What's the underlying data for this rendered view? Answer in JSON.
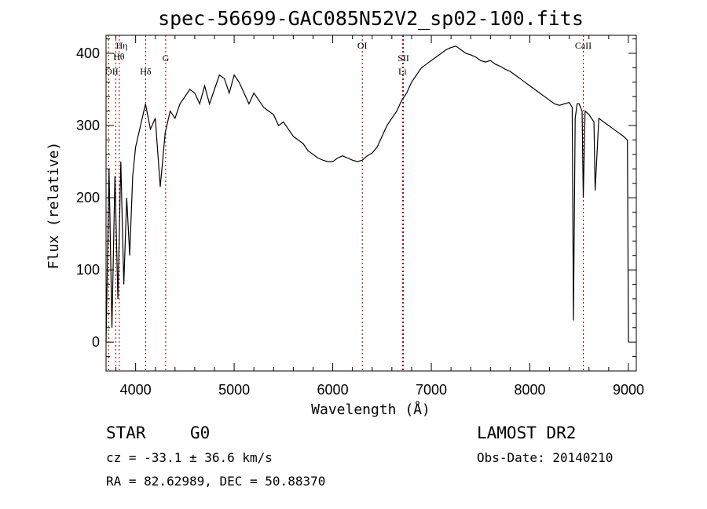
{
  "chart_data": {
    "type": "line",
    "title": "spec-56699-GAC085N52V2_sp02-100.fits",
    "xlabel": "Wavelength (Å)",
    "ylabel": "Flux (relative)",
    "xlim": [
      3700,
      9080
    ],
    "ylim": [
      -40,
      425
    ],
    "xticks": [
      4000,
      5000,
      6000,
      7000,
      8000,
      9000
    ],
    "yticks": [
      0,
      100,
      200,
      300,
      400
    ],
    "grid": false,
    "line_color": "#000000",
    "marker_color": "#8b0000",
    "series": [
      {
        "x": [
          3700,
          3730,
          3760,
          3790,
          3820,
          3850,
          3880,
          3910,
          3940,
          3970,
          4000,
          4050,
          4100,
          4150,
          4200,
          4250,
          4300,
          4350,
          4400,
          4450,
          4500,
          4550,
          4600,
          4650,
          4700,
          4750,
          4800,
          4850,
          4900,
          4950,
          5000,
          5050,
          5100,
          5150,
          5200,
          5250,
          5300,
          5350,
          5400,
          5450,
          5500,
          5550,
          5600,
          5650,
          5700,
          5750,
          5800,
          5850,
          5900,
          5950,
          6000,
          6050,
          6100,
          6150,
          6200,
          6250,
          6300,
          6350,
          6400,
          6450,
          6500,
          6550,
          6600,
          6650,
          6700,
          6750,
          6800,
          6850,
          6900,
          6950,
          7000,
          7050,
          7100,
          7150,
          7200,
          7250,
          7300,
          7350,
          7400,
          7450,
          7500,
          7550,
          7600,
          7650,
          7700,
          7750,
          7800,
          7850,
          7900,
          7950,
          8000,
          8050,
          8100,
          8150,
          8200,
          8250,
          8300,
          8350,
          8400,
          8430,
          8442,
          8460,
          8480,
          8500,
          8530,
          8542,
          8560,
          8600,
          8650,
          8662,
          8700,
          8750,
          8800,
          8850,
          8900,
          8950,
          8990,
          9000
        ],
        "y": [
          0,
          240,
          20,
          230,
          60,
          250,
          80,
          200,
          120,
          230,
          270,
          300,
          330,
          295,
          310,
          215,
          290,
          320,
          310,
          330,
          340,
          350,
          345,
          330,
          355,
          330,
          350,
          370,
          365,
          345,
          370,
          360,
          345,
          330,
          345,
          335,
          325,
          320,
          315,
          300,
          305,
          295,
          285,
          280,
          275,
          265,
          260,
          255,
          252,
          250,
          250,
          255,
          258,
          255,
          252,
          250,
          252,
          258,
          262,
          270,
          285,
          300,
          310,
          320,
          335,
          345,
          360,
          370,
          380,
          385,
          390,
          395,
          400,
          405,
          408,
          410,
          405,
          400,
          398,
          395,
          390,
          388,
          390,
          385,
          382,
          378,
          375,
          370,
          365,
          360,
          355,
          350,
          345,
          340,
          335,
          330,
          328,
          330,
          332,
          325,
          30,
          310,
          330,
          330,
          320,
          200,
          320,
          315,
          305,
          210,
          310,
          305,
          300,
          295,
          290,
          285,
          280,
          0
        ]
      }
    ],
    "spectral_lines": [
      {
        "label": "Hη",
        "x": 3835
      },
      {
        "label": "Hθ",
        "x": 3798
      },
      {
        "label": "OII",
        "x": 3727
      },
      {
        "label": "Hδ",
        "x": 4102
      },
      {
        "label": "G",
        "x": 4305
      },
      {
        "label": "OI",
        "x": 6300
      },
      {
        "label": "SII",
        "x": 6717
      },
      {
        "label": "Li",
        "x": 6708
      },
      {
        "label": "CaII",
        "x": 8542
      }
    ]
  },
  "info": {
    "class": "STAR",
    "subclass": "G0",
    "survey": "LAMOST DR2",
    "cz": "cz = -33.1 ± 36.6 km/s",
    "obs_date": "Obs-Date: 20140210",
    "coords": "RA =  82.62989, DEC =  50.88370"
  }
}
